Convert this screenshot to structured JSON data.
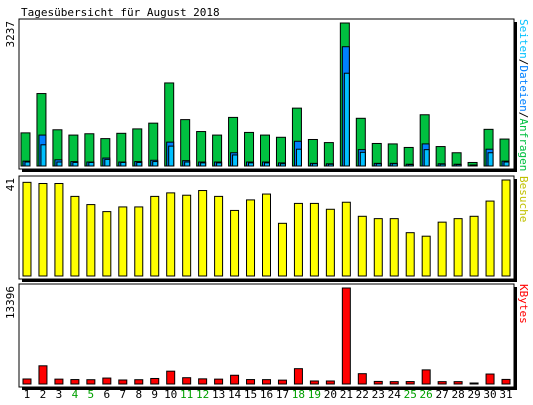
{
  "chart_data": {
    "type": "bar",
    "title": "Tagesübersicht für August 2018",
    "categories": [
      "1",
      "2",
      "3",
      "4",
      "5",
      "6",
      "7",
      "8",
      "9",
      "10",
      "11",
      "12",
      "13",
      "14",
      "15",
      "16",
      "17",
      "18",
      "19",
      "20",
      "21",
      "22",
      "23",
      "24",
      "25",
      "26",
      "27",
      "28",
      "29",
      "30",
      "31"
    ],
    "weekend_days": [
      "4",
      "5",
      "11",
      "12",
      "18",
      "19",
      "25",
      "26"
    ],
    "panels": [
      {
        "name": "hits",
        "max_label": "3237",
        "ymax": 3237,
        "side_label_parts": [
          "Seiten",
          "/",
          "Dateien",
          "/",
          "Anfragen"
        ],
        "series": [
          {
            "name": "Anfragen",
            "color": "#00C040",
            "values": [
              750,
              1640,
              820,
              700,
              730,
              620,
              740,
              840,
              970,
              1880,
              1050,
              780,
              700,
              1100,
              760,
              700,
              650,
              1310,
              600,
              530,
              3237,
              1080,
              510,
              500,
              420,
              1160,
              440,
              300,
              80,
              830,
              610
            ]
          },
          {
            "name": "Dateien",
            "color": "#0080FF",
            "values": [
              110,
              700,
              140,
              100,
              90,
              180,
              90,
              100,
              130,
              540,
              120,
              90,
              90,
              300,
              90,
              90,
              70,
              560,
              60,
              50,
              2700,
              370,
              60,
              60,
              40,
              500,
              50,
              40,
              20,
              380,
              110
            ]
          },
          {
            "name": "Seiten",
            "color": "#00C0FF",
            "values": [
              90,
              480,
              90,
              80,
              80,
              150,
              80,
              80,
              100,
              450,
              90,
              70,
              70,
              250,
              70,
              70,
              50,
              380,
              50,
              40,
              2100,
              310,
              50,
              50,
              30,
              370,
              40,
              30,
              15,
              300,
              90
            ]
          }
        ]
      },
      {
        "name": "visits",
        "max_label": "41",
        "ymax": 41,
        "side_label_parts": [
          "Besuche"
        ],
        "series": [
          {
            "name": "Besuche",
            "color": "#FFFF00",
            "values": [
              40,
              39.5,
              39.5,
              34,
              30.5,
              27.5,
              29.5,
              29.5,
              34,
              35.5,
              34.5,
              36.5,
              34,
              28,
              32.5,
              35,
              22.5,
              31,
              31,
              28.5,
              31.5,
              25.5,
              24.5,
              24.5,
              18.5,
              17,
              23,
              24.5,
              25.5,
              32,
              41
            ]
          }
        ]
      },
      {
        "name": "kbytes",
        "max_label": "13396",
        "ymax": 13396,
        "side_label_parts": [
          "KBytes"
        ],
        "series": [
          {
            "name": "KBytes",
            "color": "#FF0000",
            "values": [
              700,
              2540,
              680,
              620,
              600,
              830,
              560,
              600,
              770,
              1790,
              880,
              720,
              680,
              1220,
              620,
              610,
              540,
              2140,
              420,
              420,
              13396,
              1440,
              360,
              330,
              340,
              1970,
              330,
              330,
              90,
              1390,
              640
            ]
          }
        ]
      }
    ]
  },
  "colors": {
    "background": "#FFFFFF",
    "panel": "#FFFFFF",
    "frame": "#000000",
    "weekday_label": "#000000",
    "weekend_label": "#00A000",
    "side_label_seiten": "#00C0FF",
    "side_label_sep": "#000000",
    "side_label_dateien": "#0080FF",
    "side_label_anfragen": "#00C040",
    "side_label_besuche": "#C0C000",
    "side_label_kbytes": "#FF0000"
  }
}
